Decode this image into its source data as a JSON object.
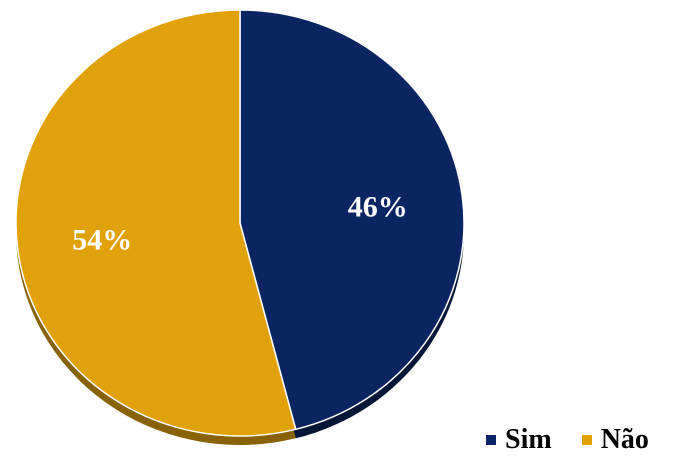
{
  "chart_data": {
    "type": "pie",
    "title": "",
    "slices": [
      {
        "label": "Sim",
        "value": 46,
        "display": "46%",
        "color": "#0b2563",
        "shade": "#061639"
      },
      {
        "label": "Não",
        "value": 54,
        "display": "54%",
        "color": "#e1a10b",
        "shade": "#8a6206"
      }
    ],
    "legend_position": "bottom-right"
  }
}
